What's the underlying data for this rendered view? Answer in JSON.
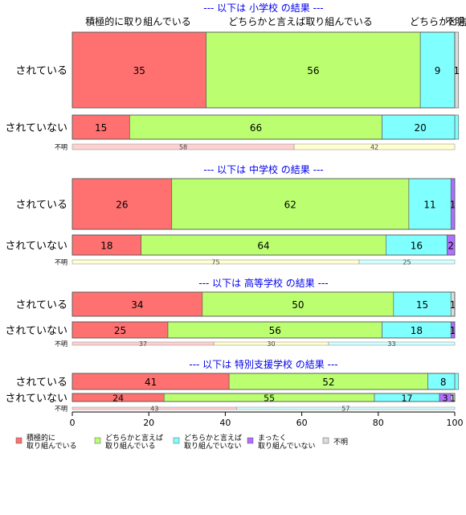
{
  "chart_data": {
    "type": "bar",
    "orientation": "horizontal",
    "stacked": true,
    "xlim": [
      0,
      100
    ],
    "xticks": [
      "0",
      "20",
      "40",
      "60",
      "80",
      "100"
    ],
    "top_column_labels": [
      "積極的に取り組んでいる",
      "どちらかと言えば取り組んでいる",
      "どちらかと言",
      "不明"
    ],
    "legend_position": "bottom",
    "legend": [
      {
        "label": "積極的に\n取り組んでいる",
        "color": "#ff7070"
      },
      {
        "label": "どちらかと言えば\n取り組んでいる",
        "color": "#bbff70"
      },
      {
        "label": "どちらかと言えば\n取り組んでいない",
        "color": "#80ffff"
      },
      {
        "label": "まったく\n取り組んでいない",
        "color": "#b070ff"
      },
      {
        "label": "不明",
        "color": "#dddddd"
      }
    ],
    "colors": [
      "#ff7070",
      "#bbff70",
      "#80ffff",
      "#b070ff",
      "#dddddd"
    ],
    "fumei_colors": [
      "#ffd0d0",
      "#ffffd0",
      "#d0ffff"
    ],
    "panels": [
      {
        "title": "--- 以下は 小学校 の結果 ---",
        "rows": [
          {
            "label": "されている",
            "values": [
              35,
              56,
              9,
              0,
              1
            ],
            "labels": [
              "35",
              "56",
              "9",
              "",
              "1"
            ]
          },
          {
            "label": "されていない",
            "values": [
              15,
              66,
              20,
              0,
              0
            ],
            "labels": [
              "15",
              "66",
              "20",
              "",
              ""
            ]
          }
        ],
        "fumei": {
          "label": "不明",
          "values": [
            58,
            42,
            0
          ],
          "labels": [
            "58",
            "42",
            ""
          ]
        }
      },
      {
        "title": "--- 以下は 中学校 の結果 ---",
        "rows": [
          {
            "label": "されている",
            "values": [
              26,
              62,
              11,
              1,
              0
            ],
            "labels": [
              "26",
              "62",
              "11",
              "1",
              ""
            ]
          },
          {
            "label": "されていない",
            "values": [
              18,
              64,
              16,
              2,
              0
            ],
            "labels": [
              "18",
              "64",
              "16",
              "2",
              ""
            ]
          }
        ],
        "fumei": {
          "label": "不明",
          "values": [
            0,
            75,
            25
          ],
          "labels": [
            "",
            "75",
            "25"
          ]
        }
      },
      {
        "title": "--- 以下は 高等学校 の結果 ---",
        "rows": [
          {
            "label": "されている",
            "values": [
              34,
              50,
              15,
              0,
              1
            ],
            "labels": [
              "34",
              "50",
              "15",
              "",
              "1"
            ]
          },
          {
            "label": "されていない",
            "values": [
              25,
              56,
              18,
              1,
              0
            ],
            "labels": [
              "25",
              "56",
              "18",
              "1",
              ""
            ]
          }
        ],
        "fumei": {
          "label": "不明",
          "values": [
            37,
            30,
            33
          ],
          "labels": [
            "37",
            "30",
            "33"
          ]
        }
      },
      {
        "title": "--- 以下は 特別支援学校 の結果 ---",
        "rows": [
          {
            "label": "されている",
            "values": [
              41,
              52,
              8,
              0,
              0
            ],
            "labels": [
              "41",
              "52",
              "8",
              "",
              ""
            ]
          },
          {
            "label": "されていない",
            "values": [
              24,
              55,
              17,
              3,
              1
            ],
            "labels": [
              "24",
              "55",
              "17",
              "3",
              "1"
            ]
          }
        ],
        "fumei": {
          "label": "不明",
          "values": [
            43,
            0,
            57
          ],
          "labels": [
            "43",
            "",
            "57"
          ]
        }
      }
    ]
  }
}
